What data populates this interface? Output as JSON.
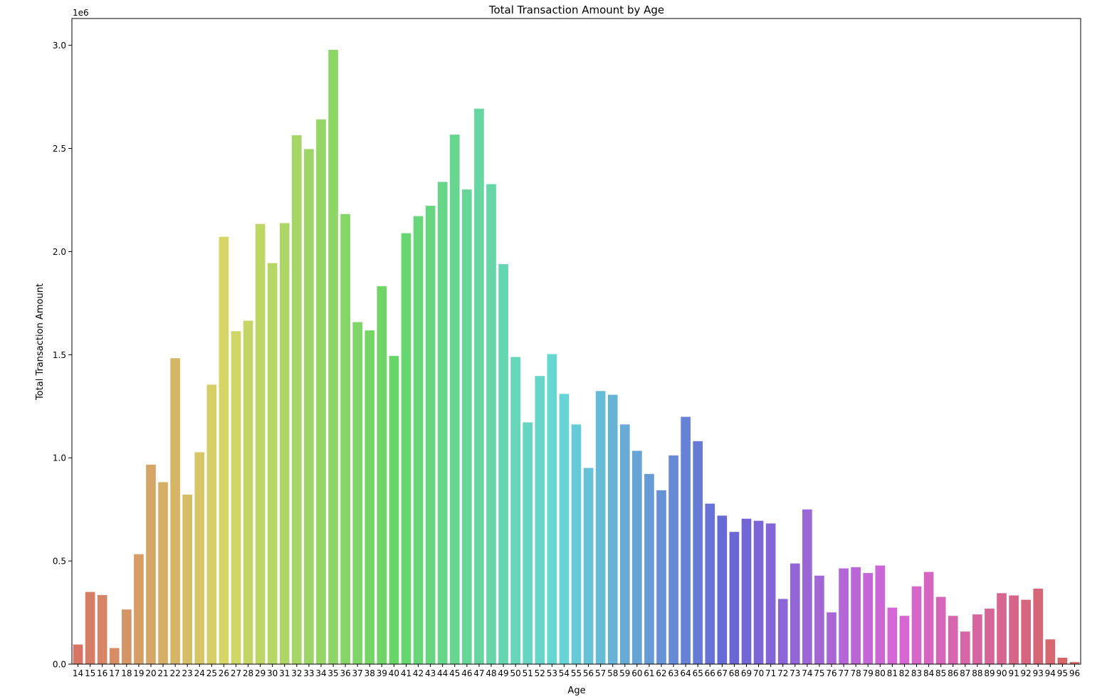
{
  "chart_data": {
    "type": "bar",
    "title": "Total Transaction Amount by Age",
    "xlabel": "Age",
    "ylabel": "Total Transaction Amount",
    "y_offset_label": "1e6",
    "y_scale": 1000000,
    "ylim": [
      0,
      3.13
    ],
    "y_ticks": [
      0.0,
      0.5,
      1.0,
      1.5,
      2.0,
      2.5,
      3.0
    ],
    "y_tick_labels": [
      "0.0",
      "0.5",
      "1.0",
      "1.5",
      "2.0",
      "2.5",
      "3.0"
    ],
    "grid": false,
    "legend": "none",
    "categories": [
      "14",
      "15",
      "16",
      "17",
      "18",
      "19",
      "20",
      "21",
      "22",
      "23",
      "24",
      "25",
      "26",
      "27",
      "28",
      "29",
      "30",
      "31",
      "32",
      "33",
      "34",
      "35",
      "36",
      "37",
      "38",
      "39",
      "40",
      "41",
      "42",
      "43",
      "44",
      "45",
      "46",
      "47",
      "48",
      "49",
      "50",
      "51",
      "52",
      "53",
      "54",
      "55",
      "56",
      "57",
      "58",
      "59",
      "60",
      "61",
      "62",
      "63",
      "64",
      "65",
      "66",
      "67",
      "68",
      "69",
      "70",
      "71",
      "72",
      "73",
      "74",
      "75",
      "76",
      "77",
      "78",
      "79",
      "80",
      "81",
      "82",
      "83",
      "84",
      "85",
      "86",
      "87",
      "88",
      "89",
      "90",
      "91",
      "92",
      "93",
      "94",
      "95",
      "96"
    ],
    "values": [
      0.095,
      0.35,
      0.335,
      0.078,
      0.265,
      0.533,
      0.967,
      0.882,
      1.483,
      0.822,
      1.027,
      1.355,
      2.072,
      1.614,
      1.665,
      2.134,
      1.944,
      2.138,
      2.564,
      2.497,
      2.641,
      2.978,
      2.182,
      1.658,
      1.618,
      1.832,
      1.494,
      2.089,
      2.172,
      2.222,
      2.338,
      2.567,
      2.301,
      2.693,
      2.327,
      1.939,
      1.489,
      1.172,
      1.397,
      1.503,
      1.31,
      1.162,
      0.951,
      1.324,
      1.306,
      1.162,
      1.034,
      0.922,
      0.843,
      1.012,
      1.199,
      1.081,
      0.778,
      0.72,
      0.641,
      0.705,
      0.695,
      0.682,
      0.316,
      0.488,
      0.75,
      0.429,
      0.251,
      0.464,
      0.47,
      0.442,
      0.478,
      0.274,
      0.234,
      0.377,
      0.447,
      0.326,
      0.234,
      0.158,
      0.241,
      0.269,
      0.344,
      0.333,
      0.312,
      0.366,
      0.12,
      0.031,
      0.01
    ]
  }
}
